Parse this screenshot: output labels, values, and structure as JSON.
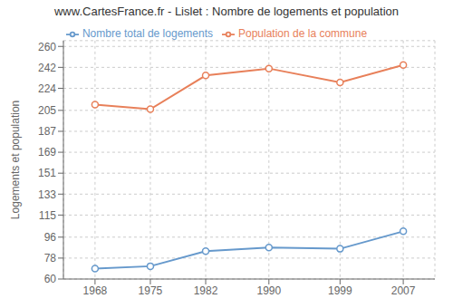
{
  "chart_data": {
    "type": "line",
    "title": "www.CartesFrance.fr - Lislet : Nombre de logements et population",
    "y_label": "Logements et population",
    "x": [
      1968,
      1975,
      1982,
      1990,
      1999,
      2007
    ],
    "series": [
      {
        "name": "Nombre total de logements",
        "color": "#6699cc",
        "marker": "circle",
        "values": [
          69,
          71,
          84,
          87,
          86,
          101
        ]
      },
      {
        "name": "Population de la commune",
        "color": "#e8805a",
        "marker": "circle",
        "values": [
          210,
          206,
          235,
          241,
          229,
          244
        ]
      }
    ],
    "xlim": [
      1964,
      2011
    ],
    "xticks": [
      1968,
      1975,
      1982,
      1990,
      1999,
      2007
    ],
    "ylim": [
      60,
      265
    ],
    "yticks": [
      60,
      78,
      96,
      115,
      133,
      151,
      169,
      187,
      205,
      224,
      242,
      260
    ],
    "grid": true,
    "legend": "top"
  }
}
